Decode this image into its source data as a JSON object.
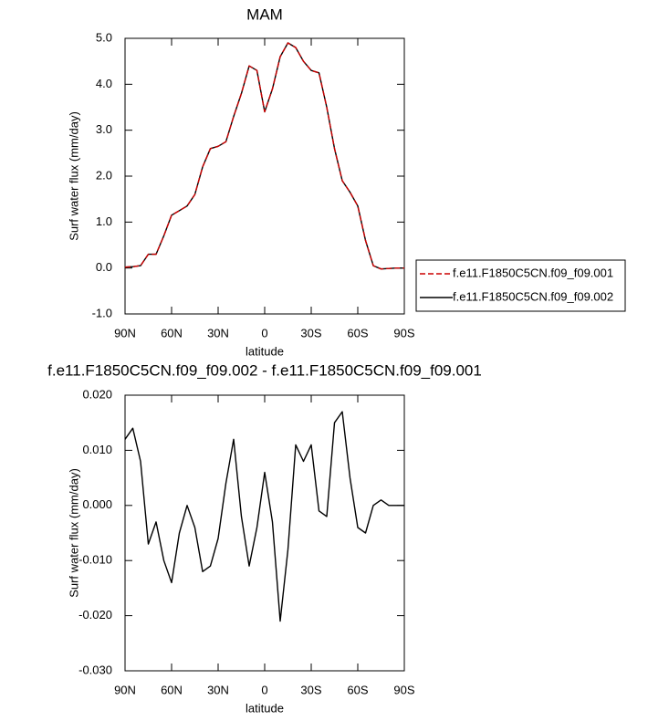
{
  "chart_data": [
    {
      "type": "line",
      "title": "MAM",
      "xlabel": "latitude",
      "ylabel": "Surf water flux (mm/day)",
      "x": [
        90,
        85,
        80,
        75,
        70,
        65,
        60,
        55,
        50,
        45,
        40,
        35,
        30,
        25,
        20,
        15,
        10,
        5,
        0,
        -5,
        -10,
        -15,
        -20,
        -25,
        -30,
        -35,
        -40,
        -45,
        -50,
        -55,
        -60,
        -65,
        -70,
        -75,
        -80,
        -85,
        -90
      ],
      "series": [
        {
          "name": "f.e11.F1850C5CN.f09_f09.001",
          "color": "#cc0000",
          "dashed": true,
          "values": [
            0.02,
            0.03,
            0.05,
            0.3,
            0.3,
            0.7,
            1.15,
            1.25,
            1.35,
            1.6,
            2.2,
            2.6,
            2.65,
            2.75,
            3.3,
            3.8,
            4.4,
            4.3,
            3.4,
            3.9,
            4.6,
            4.9,
            4.8,
            4.5,
            4.3,
            4.25,
            3.5,
            2.6,
            1.9,
            1.65,
            1.35,
            0.6,
            0.05,
            -0.02,
            -0.01,
            0.0,
            0.0
          ]
        },
        {
          "name": "f.e11.F1850C5CN.f09_f09.002",
          "color": "#000000",
          "dashed": false,
          "values": [
            0.02,
            0.03,
            0.05,
            0.3,
            0.3,
            0.7,
            1.15,
            1.25,
            1.35,
            1.6,
            2.2,
            2.6,
            2.65,
            2.75,
            3.3,
            3.8,
            4.4,
            4.3,
            3.4,
            3.9,
            4.6,
            4.9,
            4.8,
            4.5,
            4.3,
            4.25,
            3.5,
            2.6,
            1.9,
            1.65,
            1.35,
            0.6,
            0.05,
            -0.02,
            -0.01,
            0.0,
            0.0
          ]
        }
      ],
      "xlim": [
        90,
        -90
      ],
      "xticks": [
        {
          "value": 90,
          "label": "90N"
        },
        {
          "value": 60,
          "label": "60N"
        },
        {
          "value": 30,
          "label": "30N"
        },
        0,
        {
          "value": -30,
          "label": "30S"
        },
        {
          "value": -60,
          "label": "60S"
        },
        {
          "value": -90,
          "label": "90S"
        }
      ],
      "ylim": [
        -1,
        5
      ],
      "yticks": [
        {
          "value": -1,
          "label": "-1.0"
        },
        {
          "value": 0,
          "label": "0.0"
        },
        {
          "value": 1,
          "label": "1.0"
        },
        {
          "value": 2,
          "label": "2.0"
        },
        {
          "value": 3,
          "label": "3.0"
        },
        {
          "value": 4,
          "label": "4.0"
        },
        {
          "value": 5,
          "label": "5.0"
        }
      ],
      "legend": "right"
    },
    {
      "type": "line",
      "title": "f.e11.F1850C5CN.f09_f09.002 - f.e11.F1850C5CN.f09_f09.001",
      "xlabel": "latitude",
      "ylabel": "Surf water flux (mm/day)",
      "x": [
        90,
        85,
        80,
        75,
        70,
        65,
        60,
        55,
        50,
        45,
        40,
        35,
        30,
        25,
        20,
        15,
        10,
        5,
        0,
        -5,
        -10,
        -15,
        -20,
        -25,
        -30,
        -35,
        -40,
        -45,
        -50,
        -55,
        -60,
        -65,
        -70,
        -75,
        -80,
        -85,
        -90
      ],
      "color": "#000000",
      "values": [
        0.012,
        0.014,
        0.008,
        -0.007,
        -0.003,
        -0.01,
        -0.014,
        -0.005,
        0.0,
        -0.004,
        -0.012,
        -0.011,
        -0.006,
        0.004,
        0.012,
        -0.002,
        -0.011,
        -0.004,
        0.006,
        -0.003,
        -0.021,
        -0.008,
        0.011,
        0.008,
        0.011,
        -0.001,
        -0.002,
        0.015,
        0.017,
        0.005,
        -0.004,
        -0.005,
        0.0,
        0.001,
        0.0,
        0.0,
        0.0
      ],
      "xlim": [
        90,
        -90
      ],
      "xticks": [
        {
          "value": 90,
          "label": "90N"
        },
        {
          "value": 60,
          "label": "60N"
        },
        {
          "value": 30,
          "label": "30N"
        },
        0,
        {
          "value": -30,
          "label": "30S"
        },
        {
          "value": -60,
          "label": "60S"
        },
        {
          "value": -90,
          "label": "90S"
        }
      ],
      "ylim": [
        -0.03,
        0.02
      ],
      "yticks": [
        {
          "value": -0.03,
          "label": "-0.030"
        },
        {
          "value": -0.02,
          "label": "-0.020"
        },
        {
          "value": -0.01,
          "label": "-0.010"
        },
        {
          "value": 0,
          "label": "0.000"
        },
        {
          "value": 0.01,
          "label": "0.010"
        },
        {
          "value": 0.02,
          "label": "0.020"
        }
      ]
    }
  ]
}
